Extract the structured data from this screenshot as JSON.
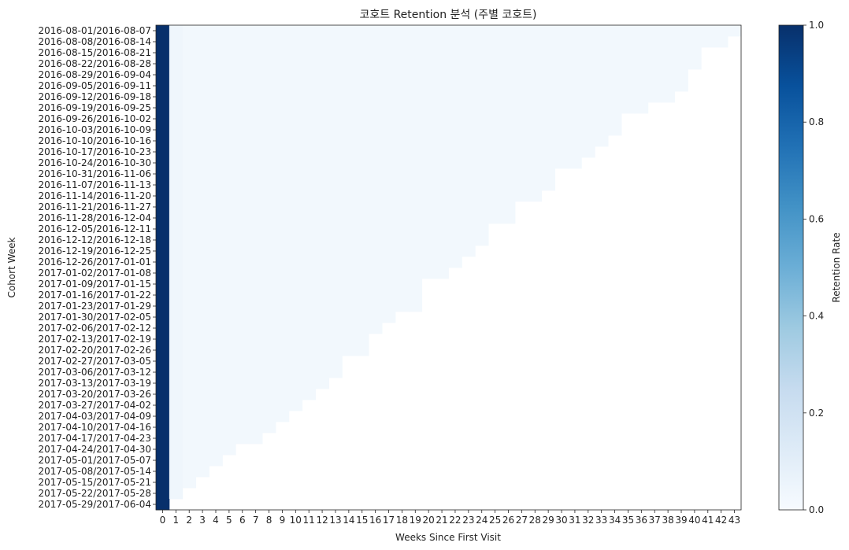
{
  "chart_data": {
    "type": "heatmap",
    "title": "코호트 Retention 분석 (주별 코호트)",
    "xlabel": "Weeks Since First Visit",
    "ylabel": "Cohort Week",
    "colorbar_label": "Retention Rate",
    "colorbar_ticks": [
      "0.0",
      "0.2",
      "0.4",
      "0.6",
      "0.8",
      "1.0"
    ],
    "colormap": [
      "#f7fbff",
      "#deebf7",
      "#c6dbef",
      "#9ecae1",
      "#6baed6",
      "#4292c6",
      "#2171b5",
      "#08519c",
      "#08306b"
    ],
    "vmin": 0,
    "vmax": 1,
    "x": [
      0,
      1,
      2,
      3,
      4,
      5,
      6,
      7,
      8,
      9,
      10,
      11,
      12,
      13,
      14,
      15,
      16,
      17,
      18,
      19,
      20,
      21,
      22,
      23,
      24,
      25,
      26,
      27,
      28,
      29,
      30,
      31,
      32,
      33,
      34,
      35,
      36,
      37,
      38,
      39,
      40,
      41,
      42,
      43
    ],
    "x_tick_labels": [
      "0",
      "1",
      "2",
      "3",
      "4",
      "5",
      "6",
      "7",
      "8",
      "9",
      "10",
      "11",
      "12",
      "13",
      "14",
      "15",
      "16",
      "17",
      "18",
      "19",
      "20",
      "21",
      "22",
      "23",
      "24",
      "25",
      "26",
      "27",
      "28",
      "29",
      "30",
      "31",
      "32",
      "33",
      "34",
      "35",
      "36",
      "37",
      "38",
      "39",
      "40",
      "41",
      "42",
      "43"
    ],
    "cohorts": [
      "2016-08-01/2016-08-07",
      "2016-08-08/2016-08-14",
      "2016-08-15/2016-08-21",
      "2016-08-22/2016-08-28",
      "2016-08-29/2016-09-04",
      "2016-09-05/2016-09-11",
      "2016-09-12/2016-09-18",
      "2016-09-19/2016-09-25",
      "2016-09-26/2016-10-02",
      "2016-10-03/2016-10-09",
      "2016-10-10/2016-10-16",
      "2016-10-17/2016-10-23",
      "2016-10-24/2016-10-30",
      "2016-10-31/2016-11-06",
      "2016-11-07/2016-11-13",
      "2016-11-14/2016-11-20",
      "2016-11-21/2016-11-27",
      "2016-11-28/2016-12-04",
      "2016-12-05/2016-12-11",
      "2016-12-12/2016-12-18",
      "2016-12-19/2016-12-25",
      "2016-12-26/2017-01-01",
      "2017-01-02/2017-01-08",
      "2017-01-09/2017-01-15",
      "2017-01-16/2017-01-22",
      "2017-01-23/2017-01-29",
      "2017-01-30/2017-02-05",
      "2017-02-06/2017-02-12",
      "2017-02-13/2017-02-19",
      "2017-02-20/2017-02-26",
      "2017-02-27/2017-03-05",
      "2017-03-06/2017-03-12",
      "2017-03-13/2017-03-19",
      "2017-03-20/2017-03-26",
      "2017-03-27/2017-04-02",
      "2017-04-03/2017-04-09",
      "2017-04-10/2017-04-16",
      "2017-04-17/2017-04-23",
      "2017-04-24/2017-04-30",
      "2017-05-01/2017-05-07",
      "2017-05-08/2017-05-14",
      "2017-05-15/2017-05-21",
      "2017-05-22/2017-05-28",
      "2017-05-29/2017-06-04"
    ],
    "weeks_observed": [
      44,
      43,
      41,
      41,
      40,
      40,
      39,
      37,
      35,
      35,
      34,
      33,
      32,
      30,
      30,
      29,
      27,
      27,
      25,
      25,
      24,
      23,
      22,
      20,
      20,
      20,
      18,
      17,
      16,
      16,
      14,
      14,
      13,
      12,
      11,
      10,
      9,
      8,
      6,
      5,
      4,
      3,
      2,
      1
    ],
    "retention_week0": 1.0,
    "retention_week1": 0.04,
    "retention_later": 0.025
  }
}
